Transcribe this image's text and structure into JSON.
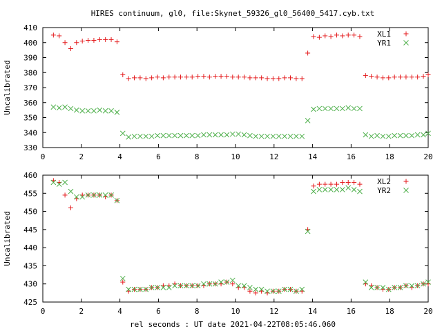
{
  "title": "HIRES continuum, gl0, file:Skynet_59326_gl0_56400_5417.cyb.txt",
  "xlabel": "rel seconds : UT date 2021-04-22T08:05:46.060",
  "colors": {
    "red": "#e41a1c",
    "green": "#4daf4a",
    "axis": "#000000"
  },
  "chart_data": [
    {
      "type": "scatter",
      "ylabel": "Uncalibrated",
      "xlim": [
        0,
        20
      ],
      "ylim": [
        330,
        410
      ],
      "xticks": [
        0,
        2,
        4,
        6,
        8,
        10,
        12,
        14,
        16,
        18,
        20
      ],
      "yticks": [
        330,
        340,
        350,
        360,
        370,
        380,
        390,
        400,
        410
      ],
      "legend_position": "top-right",
      "x": [
        0.55,
        0.85,
        1.15,
        1.45,
        1.75,
        2.05,
        2.35,
        2.65,
        2.95,
        3.25,
        3.55,
        3.85,
        4.15,
        4.45,
        4.75,
        5.05,
        5.35,
        5.65,
        5.95,
        6.25,
        6.55,
        6.85,
        7.15,
        7.45,
        7.75,
        8.05,
        8.35,
        8.65,
        8.95,
        9.25,
        9.55,
        9.85,
        10.15,
        10.45,
        10.75,
        11.05,
        11.35,
        11.65,
        11.95,
        12.25,
        12.55,
        12.85,
        13.15,
        13.45,
        13.75,
        14.05,
        14.35,
        14.65,
        14.95,
        15.25,
        15.55,
        15.85,
        16.15,
        16.45,
        16.75,
        17.05,
        17.35,
        17.65,
        17.95,
        18.25,
        18.55,
        18.85,
        19.15,
        19.45,
        19.75,
        20.0
      ],
      "series": [
        {
          "name": "XL1",
          "marker": "plus",
          "color": "#e41a1c",
          "values": [
            405,
            404.5,
            400,
            396,
            400,
            401,
            401.5,
            401.5,
            402,
            402,
            402,
            400.5,
            378.5,
            376,
            376.5,
            376.5,
            376,
            376.5,
            377,
            376.5,
            377,
            377,
            377,
            377,
            377,
            377.5,
            377.5,
            377,
            377.5,
            377.5,
            377.5,
            377,
            377,
            377,
            376.5,
            376.5,
            376.5,
            376,
            376,
            376,
            376.5,
            376.5,
            376,
            376,
            393,
            404,
            403.5,
            404.5,
            404,
            405,
            404.5,
            405,
            405,
            404,
            378,
            377.5,
            377,
            376.5,
            376.5,
            377,
            377,
            377,
            377,
            377,
            377.5,
            378.5
          ]
        },
        {
          "name": "YR1",
          "marker": "cross",
          "color": "#4daf4a",
          "values": [
            357,
            356.5,
            357,
            356,
            355,
            354.5,
            354.5,
            354.5,
            355,
            354.5,
            354.5,
            353.5,
            339.5,
            337,
            337.5,
            337.5,
            337.5,
            337.5,
            338,
            338,
            338,
            338,
            338,
            338,
            338,
            338,
            338.5,
            338.5,
            338.5,
            338.5,
            338.5,
            339,
            339,
            338.5,
            338,
            337.5,
            337.5,
            337.5,
            337.5,
            337.5,
            337.5,
            337.5,
            337.5,
            337.5,
            348,
            355.5,
            356,
            356,
            356,
            356,
            356,
            356.5,
            356,
            356,
            338.5,
            337.5,
            338,
            337.5,
            337.5,
            338,
            338,
            338,
            338,
            338.5,
            338.5,
            339.5
          ]
        }
      ]
    },
    {
      "type": "scatter",
      "ylabel": "Uncalibrated",
      "xlim": [
        0,
        20
      ],
      "ylim": [
        425,
        460
      ],
      "xticks": [
        0,
        2,
        4,
        6,
        8,
        10,
        12,
        14,
        16,
        18,
        20
      ],
      "yticks": [
        425,
        430,
        435,
        440,
        445,
        450,
        455,
        460
      ],
      "legend_position": "top-right",
      "x": [
        0.55,
        0.85,
        1.15,
        1.45,
        1.75,
        2.05,
        2.35,
        2.65,
        2.95,
        3.25,
        3.55,
        3.85,
        4.15,
        4.45,
        4.75,
        5.05,
        5.35,
        5.65,
        5.95,
        6.25,
        6.55,
        6.85,
        7.15,
        7.45,
        7.75,
        8.05,
        8.35,
        8.65,
        8.95,
        9.25,
        9.55,
        9.85,
        10.15,
        10.45,
        10.75,
        11.05,
        11.35,
        11.65,
        11.95,
        12.25,
        12.55,
        12.85,
        13.15,
        13.45,
        13.75,
        14.05,
        14.35,
        14.65,
        14.95,
        15.25,
        15.55,
        15.85,
        16.15,
        16.45,
        16.75,
        17.05,
        17.35,
        17.65,
        17.95,
        18.25,
        18.55,
        18.85,
        19.15,
        19.45,
        19.75,
        20.0
      ],
      "series": [
        {
          "name": "XL2",
          "marker": "plus",
          "color": "#e41a1c",
          "values": [
            458.5,
            458,
            454.5,
            451,
            453.5,
            454.5,
            454.5,
            454.5,
            454.5,
            454,
            454.5,
            453,
            430.5,
            428,
            428.5,
            428.5,
            428.5,
            429,
            429,
            429.5,
            429.5,
            430,
            429.5,
            429.5,
            429.5,
            429.5,
            429.5,
            430,
            430,
            430,
            430.5,
            430,
            429,
            429,
            428,
            427.5,
            428,
            427.5,
            428,
            428,
            428.5,
            428.5,
            428,
            428,
            445,
            457,
            457.5,
            457.5,
            457.5,
            457.5,
            458,
            458,
            458,
            457.5,
            430,
            429.5,
            429,
            428.5,
            428.5,
            429,
            429,
            429.5,
            429,
            429.5,
            430,
            430
          ]
        },
        {
          "name": "YR2",
          "marker": "cross",
          "color": "#4daf4a",
          "values": [
            458,
            457.5,
            458,
            455.5,
            454,
            454,
            454.5,
            454.5,
            454.5,
            454.5,
            454.5,
            453,
            431.5,
            428.5,
            428.5,
            428.5,
            428.5,
            429,
            429,
            429,
            429,
            429.5,
            429.5,
            429.5,
            429.5,
            429.5,
            430,
            430,
            430,
            430.5,
            430.5,
            431,
            429.5,
            429.5,
            429,
            428.5,
            428.5,
            428,
            428,
            428,
            428.5,
            428.5,
            428,
            428.5,
            444.5,
            455.5,
            456,
            456,
            456,
            456,
            456,
            456.5,
            456,
            455.5,
            430.5,
            429,
            429,
            429,
            428.5,
            429,
            429,
            429.5,
            429.5,
            429.5,
            430,
            430.5
          ]
        }
      ]
    }
  ]
}
